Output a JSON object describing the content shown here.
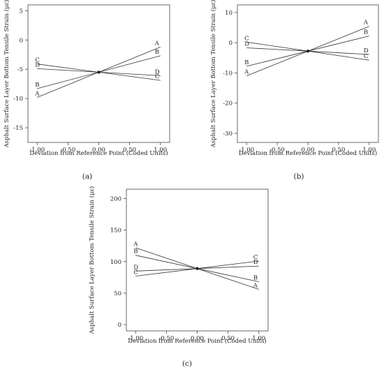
{
  "chart_data": [
    {
      "type": "line",
      "caption": "(a)",
      "xlabel": "Deviation from Reference Point (Coded Units)",
      "ylabel": "Asphalt Surface Layer Bottom Tensile Strain (με)",
      "xlim": [
        -1.15,
        1.15
      ],
      "ylim": [
        -17.5,
        6
      ],
      "xticks": [
        -1.0,
        -0.5,
        0.0,
        0.5,
        1.0
      ],
      "xtick_labels": [
        "-1.00",
        "-0.50",
        "0.00",
        "0.50",
        "1.00"
      ],
      "yticks": [
        5,
        0,
        -5,
        -10,
        -15
      ],
      "ytick_labels": [
        "5",
        "0",
        "-5",
        "-10",
        "-15"
      ],
      "x": [
        -1,
        0,
        1
      ],
      "series": [
        {
          "name": "A",
          "values": [
            -9.8,
            -5.5,
            -1.2
          ]
        },
        {
          "name": "B",
          "values": [
            -8.3,
            -5.5,
            -2.7
          ]
        },
        {
          "name": "C",
          "values": [
            -4.1,
            -5.5,
            -6.9
          ]
        },
        {
          "name": "D",
          "values": [
            -4.9,
            -5.5,
            -6.1
          ]
        }
      ],
      "grid": false
    },
    {
      "type": "line",
      "caption": "(b)",
      "xlabel": "Deviation from Reference Point (Coded Units)",
      "ylabel": "Asphalt Surface Layer Bottom Tensile Strain (με)",
      "xlim": [
        -1.15,
        1.15
      ],
      "ylim": [
        -33,
        12.5
      ],
      "xticks": [
        -1.0,
        -0.5,
        0.0,
        0.5,
        1.0
      ],
      "xtick_labels": [
        "-1.00",
        "-0.50",
        "0.00",
        "0.50",
        "1.00"
      ],
      "yticks": [
        10,
        0,
        -10,
        -20,
        -30
      ],
      "ytick_labels": [
        "10",
        "0",
        "-10",
        "-20",
        "-30"
      ],
      "x": [
        -1,
        0,
        1
      ],
      "series": [
        {
          "name": "A",
          "values": [
            -11.0,
            -2.8,
            5.4
          ]
        },
        {
          "name": "B",
          "values": [
            -7.8,
            -2.8,
            2.2
          ]
        },
        {
          "name": "C",
          "values": [
            0.2,
            -2.8,
            -5.8
          ]
        },
        {
          "name": "D",
          "values": [
            -1.7,
            -2.8,
            -3.9
          ]
        }
      ],
      "grid": false
    },
    {
      "type": "line",
      "caption": "(c)",
      "xlabel": "Deviation from Reference Point (Coded Units)",
      "ylabel": "Asphalt Surface Layer Bottom Tensile Strain (με)",
      "xlim": [
        -1.15,
        1.15
      ],
      "ylim": [
        -10,
        215
      ],
      "xticks": [
        -1.0,
        -0.5,
        0.0,
        0.5,
        1.0
      ],
      "xtick_labels": [
        "-1.00",
        "-0.50",
        "0.00",
        "0.50",
        "1.00"
      ],
      "yticks": [
        200,
        150,
        100,
        50,
        0
      ],
      "ytick_labels": [
        "200",
        "150",
        "100",
        "50",
        "0"
      ],
      "x": [
        -1,
        0,
        1
      ],
      "series": [
        {
          "name": "A",
          "values": [
            122,
            89,
            56
          ]
        },
        {
          "name": "B",
          "values": [
            110,
            89,
            68
          ]
        },
        {
          "name": "C",
          "values": [
            77,
            89,
            101
          ]
        },
        {
          "name": "D",
          "values": [
            85,
            89,
            93
          ]
        }
      ],
      "grid": false
    }
  ]
}
